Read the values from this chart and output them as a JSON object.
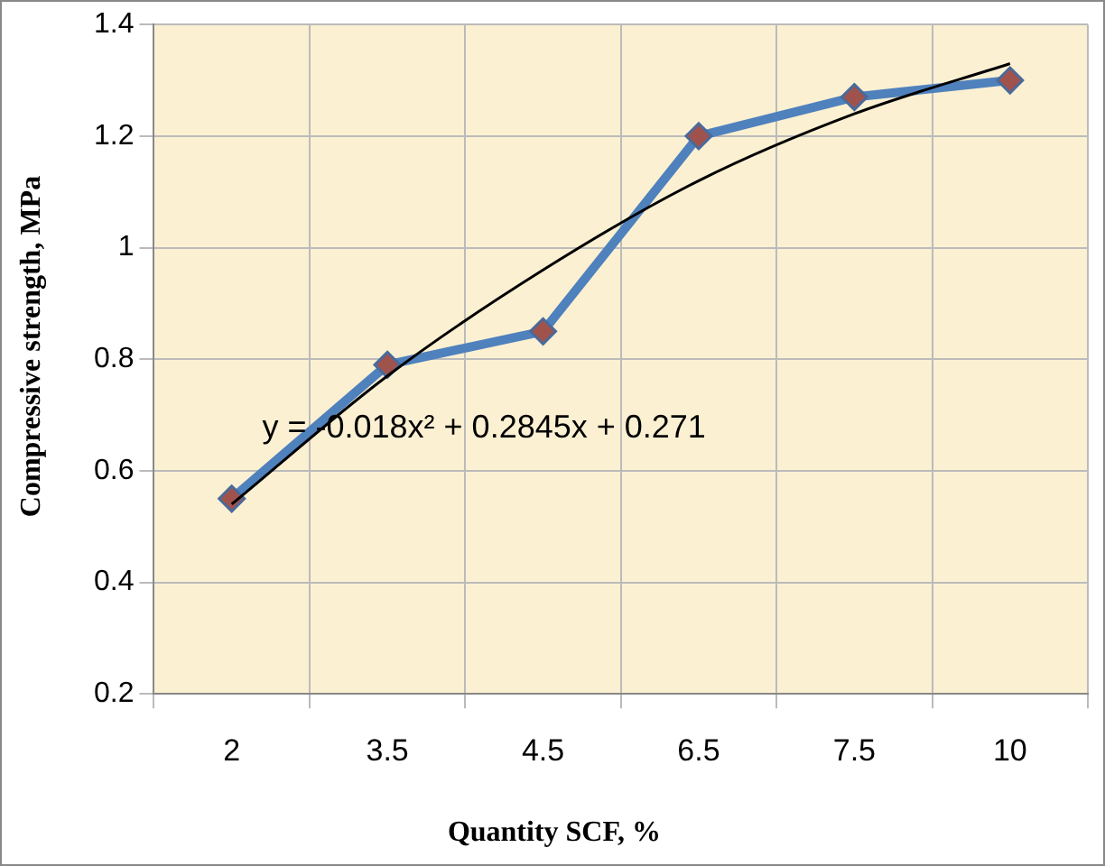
{
  "chart_data": {
    "type": "line",
    "xlabel": "Quantity SCF, %",
    "ylabel": "Compressive strength, MPa",
    "categories": [
      "2",
      "3.5",
      "4.5",
      "6.5",
      "7.5",
      "10"
    ],
    "series": [
      {
        "color": "#4f81bd",
        "marker": "diamond",
        "values": [
          0.55,
          0.79,
          0.85,
          1.2,
          1.27,
          1.3
        ]
      },
      {
        "color": "#000000",
        "marker": "none",
        "values": [
          0.54,
          0.77,
          0.96,
          1.12,
          1.24,
          1.33
        ]
      }
    ],
    "ylim": [
      0.2,
      1.4
    ],
    "yticks": [
      0.2,
      0.4,
      0.6,
      0.8,
      1,
      1.2,
      1.4
    ],
    "grid": true,
    "legend": false,
    "annotations": [
      "y = -0.018x² + 0.2845x + 0.271"
    ]
  }
}
